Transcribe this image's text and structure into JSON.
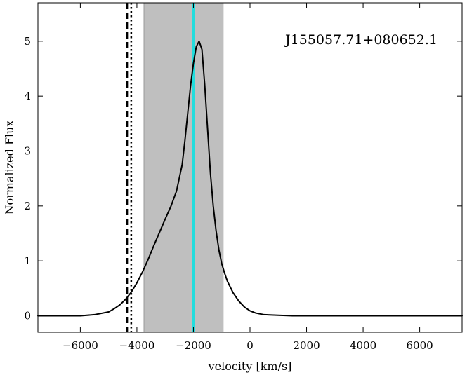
{
  "chart_data": {
    "type": "line",
    "xlabel": "velocity [km/s]",
    "ylabel": "Normalized Flux",
    "annotation": "J155057.71+080652.1",
    "xlim": [
      -7500,
      7500
    ],
    "ylim": [
      -0.3,
      5.7
    ],
    "xticks": [
      -6000,
      -4000,
      -2000,
      0,
      2000,
      4000,
      6000
    ],
    "xtick_labels": [
      "−6000",
      "−4000",
      "−2000",
      "0",
      "2000",
      "4000",
      "6000"
    ],
    "yticks": [
      0,
      1,
      2,
      3,
      4,
      5
    ],
    "ytick_labels": [
      "0",
      "1",
      "2",
      "3",
      "4",
      "5"
    ],
    "grid": false,
    "shaded_region": {
      "x0": -3750,
      "x1": -950,
      "color": "#bfbfbf"
    },
    "vertical_lines": [
      {
        "x": -4350,
        "style": "dashed",
        "color": "#000000"
      },
      {
        "x": -4200,
        "style": "dotted",
        "color": "#000000"
      },
      {
        "x": -2000,
        "style": "solid",
        "color": "#22dddd"
      }
    ],
    "series": [
      {
        "color": "#000000",
        "x": [
          -7500,
          -6000,
          -5500,
          -5000,
          -4800,
          -4600,
          -4400,
          -4200,
          -4000,
          -3800,
          -3600,
          -3400,
          -3200,
          -3000,
          -2800,
          -2600,
          -2400,
          -2300,
          -2200,
          -2100,
          -2000,
          -1900,
          -1800,
          -1700,
          -1600,
          -1500,
          -1400,
          -1300,
          -1200,
          -1100,
          -1000,
          -900,
          -800,
          -600,
          -400,
          -200,
          0,
          200,
          500,
          1000,
          1500,
          2000,
          7500
        ],
        "y": [
          0.0,
          0.0,
          0.02,
          0.07,
          0.13,
          0.2,
          0.3,
          0.43,
          0.6,
          0.8,
          1.03,
          1.28,
          1.52,
          1.76,
          1.99,
          2.27,
          2.75,
          3.2,
          3.7,
          4.2,
          4.6,
          4.9,
          5.0,
          4.85,
          4.2,
          3.4,
          2.6,
          2.0,
          1.55,
          1.2,
          0.95,
          0.78,
          0.63,
          0.42,
          0.27,
          0.16,
          0.09,
          0.05,
          0.02,
          0.01,
          0.0,
          0.0,
          0.0
        ]
      }
    ]
  }
}
